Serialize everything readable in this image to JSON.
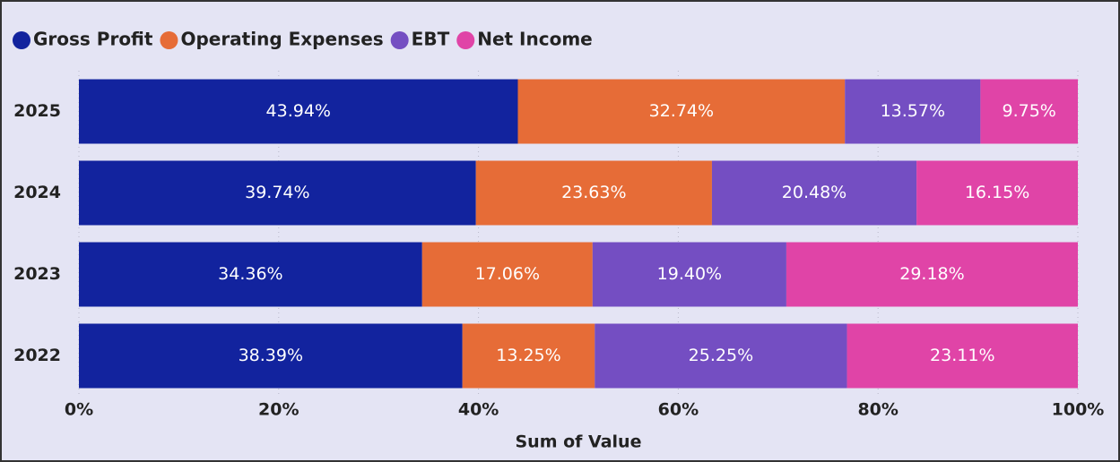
{
  "chart_data": {
    "type": "stacked-bar-horizontal",
    "categories": [
      "2025",
      "2024",
      "2023",
      "2022"
    ],
    "series": [
      {
        "name": "Gross Profit",
        "color": "#12239e",
        "values": [
          43.94,
          39.74,
          34.36,
          38.39
        ],
        "value_labels": [
          "43.94%",
          "39.74%",
          "34.36%",
          "38.39%"
        ]
      },
      {
        "name": "Operating Expenses",
        "color": "#e66c37",
        "values": [
          32.74,
          23.63,
          17.06,
          13.25
        ],
        "value_labels": [
          "32.74%",
          "23.63%",
          "17.06%",
          "13.25%"
        ]
      },
      {
        "name": "EBT",
        "color": "#744ec2",
        "values": [
          13.57,
          20.48,
          19.4,
          25.25
        ],
        "value_labels": [
          "13.57%",
          "20.48%",
          "19.40%",
          "25.25%"
        ]
      },
      {
        "name": "Net Income",
        "color": "#e044a7",
        "values": [
          9.75,
          16.15,
          29.18,
          23.11
        ],
        "value_labels": [
          "9.75%",
          "16.15%",
          "29.18%",
          "23.11%"
        ]
      }
    ],
    "x_label": "Sum of Value",
    "xlim": [
      0,
      100
    ],
    "xticks": [
      {
        "value": 0,
        "label": "0%"
      },
      {
        "value": 20,
        "label": "20%"
      },
      {
        "value": 40,
        "label": "40%"
      },
      {
        "value": 60,
        "label": "60%"
      },
      {
        "value": 80,
        "label": "80%"
      },
      {
        "value": 100,
        "label": "100%"
      }
    ],
    "grid": true,
    "legend": "top-left"
  }
}
